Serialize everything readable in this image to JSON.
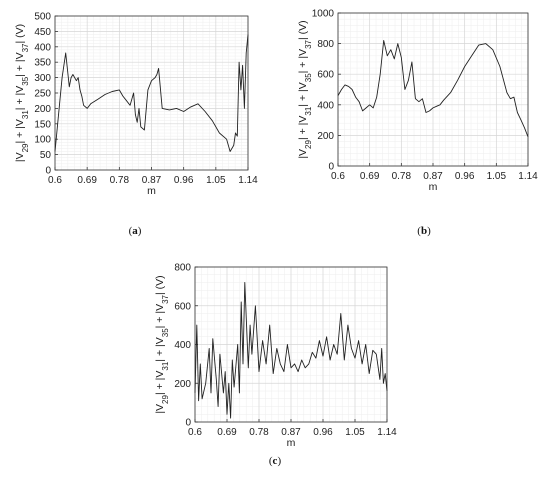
{
  "chart_data": [
    {
      "type": "line",
      "panel": "a",
      "caption_open": "(",
      "caption_letter": "a",
      "caption_close": ")",
      "xlabel": "m",
      "ylabel_parts": [
        "|V",
        "29",
        "| + |V",
        "31",
        "| + |V",
        "35",
        "| + |V",
        "37",
        "| (V)"
      ],
      "xlim": [
        0.6,
        1.14
      ],
      "ylim": [
        0,
        500
      ],
      "xticks": [
        "0.6",
        "0.69",
        "0.78",
        "0.87",
        "0.96",
        "1.05",
        "1.14"
      ],
      "yticks": [
        "0",
        "50",
        "100",
        "150",
        "200",
        "250",
        "300",
        "350",
        "400",
        "450",
        "500"
      ],
      "grid": true,
      "series": [
        {
          "style": "solid",
          "x": [
            0.6,
            0.62,
            0.625,
            0.63,
            0.64,
            0.645,
            0.65,
            0.66,
            0.665,
            0.67,
            0.675,
            0.68,
            0.69,
            0.7,
            0.72,
            0.74,
            0.76,
            0.78,
            0.79,
            0.8,
            0.81,
            0.82,
            0.825,
            0.83,
            0.835,
            0.84,
            0.85,
            0.86,
            0.87,
            0.88,
            0.885,
            0.89,
            0.9,
            0.92,
            0.94,
            0.96,
            0.98,
            1.0,
            1.02,
            1.04,
            1.06,
            1.08,
            1.09,
            1.1,
            1.105,
            1.11,
            1.115,
            1.12,
            1.125,
            1.13,
            1.135,
            1.14
          ],
          "y": [
            60,
            300,
            340,
            380,
            270,
            300,
            310,
            290,
            300,
            260,
            240,
            210,
            200,
            215,
            230,
            245,
            255,
            260,
            240,
            225,
            210,
            250,
            180,
            155,
            200,
            140,
            130,
            260,
            290,
            300,
            310,
            330,
            200,
            195,
            200,
            190,
            205,
            215,
            190,
            160,
            120,
            100,
            60,
            80,
            120,
            110,
            350,
            260,
            340,
            200,
            380,
            440
          ]
        }
      ]
    },
    {
      "type": "line",
      "panel": "b",
      "caption_open": "(",
      "caption_letter": "b",
      "caption_close": ")",
      "xlabel": "m",
      "ylabel_parts": [
        "|V",
        "29",
        "| + |V",
        "31",
        "| + |V",
        "35",
        "| + |V",
        "37",
        "| (V)"
      ],
      "xlim": [
        0.6,
        1.14
      ],
      "ylim": [
        0,
        1000
      ],
      "xticks": [
        "0.6",
        "0.69",
        "0.78",
        "0.87",
        "0.96",
        "1.05",
        "1.14"
      ],
      "yticks": [
        "0",
        "200",
        "400",
        "600",
        "800",
        "1000"
      ],
      "grid": true,
      "series": [
        {
          "style": "solid",
          "x": [
            0.6,
            0.61,
            0.62,
            0.63,
            0.64,
            0.65,
            0.66,
            0.67,
            0.68,
            0.69,
            0.7,
            0.71,
            0.72,
            0.73,
            0.74,
            0.75,
            0.76,
            0.77,
            0.78,
            0.79,
            0.8,
            0.81,
            0.82,
            0.83,
            0.84,
            0.85,
            0.86,
            0.87,
            0.88,
            0.89,
            0.9,
            0.92,
            0.94,
            0.96,
            0.98,
            1.0,
            1.02,
            1.04,
            1.06,
            1.08,
            1.09,
            1.1,
            1.11,
            1.12,
            1.13,
            1.14
          ],
          "y": [
            460,
            500,
            530,
            520,
            500,
            450,
            420,
            360,
            380,
            400,
            380,
            450,
            600,
            820,
            720,
            760,
            700,
            800,
            710,
            500,
            560,
            680,
            440,
            420,
            440,
            350,
            360,
            380,
            390,
            400,
            430,
            480,
            560,
            650,
            720,
            790,
            800,
            760,
            650,
            480,
            440,
            450,
            350,
            300,
            250,
            190
          ]
        }
      ]
    },
    {
      "type": "line",
      "panel": "c",
      "caption_open": "(",
      "caption_letter": "c",
      "caption_close": ")",
      "xlabel": "m",
      "ylabel_parts": [
        "|V",
        "29",
        "| + |V",
        "31",
        "| + |V",
        "35",
        "| + |V",
        "37",
        "| (V)"
      ],
      "xlim": [
        0.6,
        1.14
      ],
      "ylim": [
        0,
        800
      ],
      "xticks": [
        "0.6",
        "0.69",
        "0.78",
        "0.87",
        "0.96",
        "1.05",
        "1.14"
      ],
      "yticks": [
        "0",
        "200",
        "400",
        "600",
        "800"
      ],
      "grid": true,
      "series": [
        {
          "style": "solid",
          "x": [
            0.6,
            0.605,
            0.61,
            0.615,
            0.62,
            0.63,
            0.64,
            0.645,
            0.65,
            0.66,
            0.665,
            0.67,
            0.68,
            0.685,
            0.69,
            0.695,
            0.7,
            0.705,
            0.71,
            0.72,
            0.725,
            0.73,
            0.735,
            0.74,
            0.75,
            0.755,
            0.76,
            0.77,
            0.78,
            0.79,
            0.8,
            0.81,
            0.82,
            0.83,
            0.84,
            0.85,
            0.86,
            0.87,
            0.88,
            0.89,
            0.9,
            0.91,
            0.92,
            0.93,
            0.94,
            0.95,
            0.96,
            0.97,
            0.98,
            0.99,
            1.0,
            1.01,
            1.02,
            1.03,
            1.04,
            1.05,
            1.06,
            1.07,
            1.08,
            1.09,
            1.1,
            1.11,
            1.12,
            1.125,
            1.13,
            1.135,
            1.14
          ],
          "y": [
            150,
            500,
            110,
            300,
            120,
            200,
            380,
            150,
            430,
            220,
            80,
            350,
            150,
            260,
            40,
            200,
            20,
            320,
            180,
            400,
            150,
            620,
            300,
            720,
            280,
            500,
            350,
            600,
            260,
            420,
            300,
            500,
            250,
            380,
            300,
            260,
            400,
            280,
            300,
            260,
            320,
            280,
            300,
            360,
            330,
            420,
            340,
            440,
            320,
            400,
            350,
            560,
            320,
            500,
            380,
            330,
            420,
            300,
            400,
            250,
            370,
            350,
            220,
            380,
            200,
            250,
            160
          ]
        }
      ]
    }
  ]
}
